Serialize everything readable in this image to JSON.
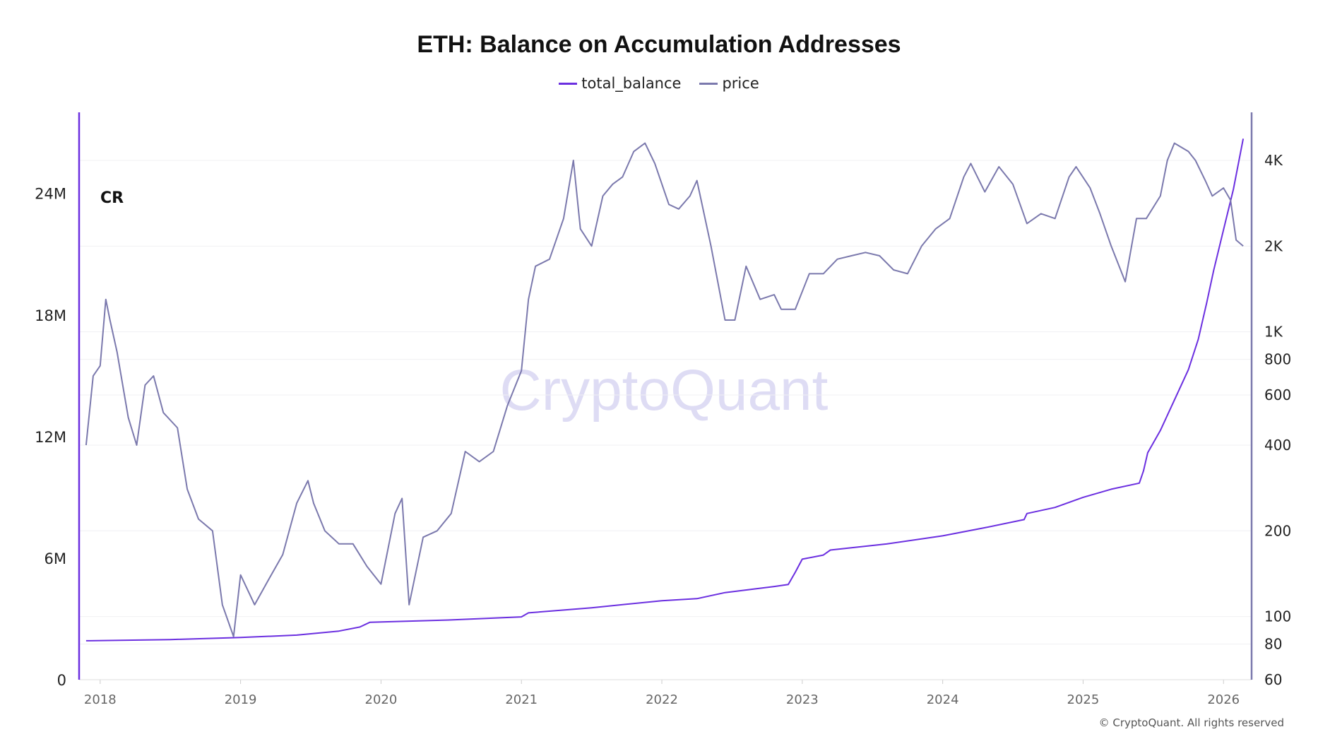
{
  "chart_data": {
    "type": "line",
    "title": "ETH: Balance on Accumulation Addresses",
    "legend_placement": "top-center",
    "grid": true,
    "watermark": "CryptoQuant",
    "logo": "Crypto Rover",
    "footer": "© CryptoQuant. All rights reserved",
    "x_ticks": [
      "2018",
      "2019",
      "2020",
      "2021",
      "2022",
      "2023",
      "2024",
      "2025",
      "2026"
    ],
    "xlim": [
      2017.85,
      2026.2
    ],
    "y_left": {
      "ticks": [
        0,
        6000000,
        12000000,
        18000000,
        24000000
      ],
      "tick_labels": [
        "0",
        "6M",
        "12M",
        "18M",
        "24M"
      ],
      "ylim": [
        0,
        28000000
      ],
      "scale": "linear"
    },
    "y_right": {
      "ticks": [
        60,
        80,
        100,
        200,
        400,
        600,
        800,
        1000,
        2000,
        4000
      ],
      "tick_labels": [
        "60",
        "80",
        "100",
        "200",
        "400",
        "600",
        "800",
        "1K",
        "2K",
        "4K"
      ],
      "ylim": [
        60,
        5900
      ],
      "scale": "log"
    },
    "series": [
      {
        "name": "total_balance",
        "axis": "left",
        "color": "#6b2fe0",
        "points": [
          [
            2017.9,
            1.92
          ],
          [
            2018.5,
            1.98
          ],
          [
            2019.0,
            2.08
          ],
          [
            2019.4,
            2.2
          ],
          [
            2019.7,
            2.4
          ],
          [
            2019.85,
            2.6
          ],
          [
            2019.92,
            2.83
          ],
          [
            2020.5,
            2.95
          ],
          [
            2021.0,
            3.1
          ],
          [
            2021.05,
            3.3
          ],
          [
            2021.5,
            3.55
          ],
          [
            2022.0,
            3.9
          ],
          [
            2022.25,
            4.0
          ],
          [
            2022.45,
            4.3
          ],
          [
            2022.8,
            4.6
          ],
          [
            2022.9,
            4.7
          ],
          [
            2022.95,
            5.3
          ],
          [
            2023.0,
            5.95
          ],
          [
            2023.15,
            6.15
          ],
          [
            2023.2,
            6.4
          ],
          [
            2023.6,
            6.7
          ],
          [
            2024.0,
            7.1
          ],
          [
            2024.3,
            7.5
          ],
          [
            2024.58,
            7.9
          ],
          [
            2024.6,
            8.2
          ],
          [
            2024.8,
            8.5
          ],
          [
            2025.0,
            9.0
          ],
          [
            2025.2,
            9.4
          ],
          [
            2025.4,
            9.7
          ],
          [
            2025.43,
            10.3
          ],
          [
            2025.46,
            11.2
          ],
          [
            2025.55,
            12.3
          ],
          [
            2025.65,
            13.8
          ],
          [
            2025.75,
            15.3
          ],
          [
            2025.82,
            16.8
          ],
          [
            2025.88,
            18.6
          ],
          [
            2025.93,
            20.2
          ],
          [
            2026.0,
            22.2
          ],
          [
            2026.07,
            24.2
          ],
          [
            2026.14,
            26.7
          ]
        ]
      },
      {
        "name": "price",
        "axis": "right",
        "color": "#7b79ad",
        "points": [
          [
            2017.9,
            400
          ],
          [
            2017.95,
            700
          ],
          [
            2018.0,
            760
          ],
          [
            2018.04,
            1300
          ],
          [
            2018.07,
            1100
          ],
          [
            2018.12,
            850
          ],
          [
            2018.2,
            500
          ],
          [
            2018.26,
            400
          ],
          [
            2018.32,
            650
          ],
          [
            2018.38,
            700
          ],
          [
            2018.45,
            520
          ],
          [
            2018.55,
            460
          ],
          [
            2018.62,
            280
          ],
          [
            2018.7,
            220
          ],
          [
            2018.8,
            200
          ],
          [
            2018.87,
            110
          ],
          [
            2018.95,
            85
          ],
          [
            2019.0,
            140
          ],
          [
            2019.1,
            110
          ],
          [
            2019.2,
            135
          ],
          [
            2019.3,
            165
          ],
          [
            2019.4,
            250
          ],
          [
            2019.48,
            300
          ],
          [
            2019.52,
            250
          ],
          [
            2019.6,
            200
          ],
          [
            2019.7,
            180
          ],
          [
            2019.8,
            180
          ],
          [
            2019.9,
            150
          ],
          [
            2020.0,
            130
          ],
          [
            2020.1,
            230
          ],
          [
            2020.15,
            260
          ],
          [
            2020.2,
            110
          ],
          [
            2020.3,
            190
          ],
          [
            2020.4,
            200
          ],
          [
            2020.5,
            230
          ],
          [
            2020.6,
            380
          ],
          [
            2020.7,
            350
          ],
          [
            2020.8,
            380
          ],
          [
            2020.9,
            550
          ],
          [
            2021.0,
            730
          ],
          [
            2021.05,
            1300
          ],
          [
            2021.1,
            1700
          ],
          [
            2021.2,
            1800
          ],
          [
            2021.3,
            2500
          ],
          [
            2021.37,
            4000
          ],
          [
            2021.42,
            2300
          ],
          [
            2021.5,
            2000
          ],
          [
            2021.58,
            3000
          ],
          [
            2021.65,
            3300
          ],
          [
            2021.72,
            3500
          ],
          [
            2021.8,
            4300
          ],
          [
            2021.88,
            4600
          ],
          [
            2021.95,
            3900
          ],
          [
            2022.05,
            2800
          ],
          [
            2022.12,
            2700
          ],
          [
            2022.2,
            3000
          ],
          [
            2022.25,
            3400
          ],
          [
            2022.35,
            2000
          ],
          [
            2022.45,
            1100
          ],
          [
            2022.52,
            1100
          ],
          [
            2022.6,
            1700
          ],
          [
            2022.7,
            1300
          ],
          [
            2022.8,
            1350
          ],
          [
            2022.85,
            1200
          ],
          [
            2022.95,
            1200
          ],
          [
            2023.05,
            1600
          ],
          [
            2023.15,
            1600
          ],
          [
            2023.25,
            1800
          ],
          [
            2023.35,
            1850
          ],
          [
            2023.45,
            1900
          ],
          [
            2023.55,
            1850
          ],
          [
            2023.65,
            1650
          ],
          [
            2023.75,
            1600
          ],
          [
            2023.85,
            2000
          ],
          [
            2023.95,
            2300
          ],
          [
            2024.05,
            2500
          ],
          [
            2024.15,
            3500
          ],
          [
            2024.2,
            3900
          ],
          [
            2024.3,
            3100
          ],
          [
            2024.4,
            3800
          ],
          [
            2024.5,
            3300
          ],
          [
            2024.6,
            2400
          ],
          [
            2024.7,
            2600
          ],
          [
            2024.8,
            2500
          ],
          [
            2024.9,
            3500
          ],
          [
            2024.95,
            3800
          ],
          [
            2025.05,
            3200
          ],
          [
            2025.12,
            2600
          ],
          [
            2025.2,
            2000
          ],
          [
            2025.3,
            1500
          ],
          [
            2025.38,
            2500
          ],
          [
            2025.45,
            2500
          ],
          [
            2025.55,
            3000
          ],
          [
            2025.6,
            4000
          ],
          [
            2025.65,
            4600
          ],
          [
            2025.75,
            4300
          ],
          [
            2025.8,
            4000
          ],
          [
            2025.87,
            3400
          ],
          [
            2025.92,
            3000
          ],
          [
            2026.0,
            3200
          ],
          [
            2026.05,
            2900
          ],
          [
            2026.09,
            2100
          ],
          [
            2026.14,
            2000
          ]
        ]
      }
    ]
  }
}
